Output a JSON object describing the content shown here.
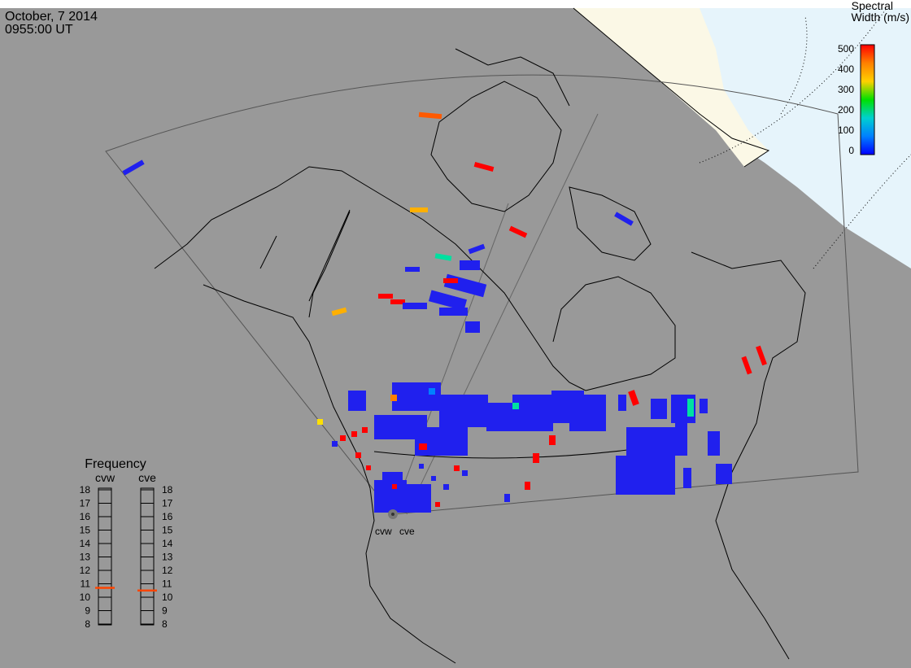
{
  "header": {
    "date": "October, 7 2014",
    "time": "0955:00 UT"
  },
  "colorbar": {
    "title_line1": "Spectral",
    "title_line2": "Width (m/s)",
    "ticks": [
      "500",
      "400",
      "300",
      "200",
      "100",
      "0"
    ],
    "stops": [
      "#ff0000",
      "#ff8000",
      "#ffd000",
      "#00e000",
      "#00d0d0",
      "#0080ff",
      "#0000ff"
    ]
  },
  "frequency": {
    "title": "Frequency",
    "panels": [
      {
        "name": "cvw",
        "value": 10.7
      },
      {
        "name": "cve",
        "value": 10.5
      }
    ],
    "ticks": [
      "18",
      "17",
      "16",
      "15",
      "14",
      "13",
      "12",
      "11",
      "10",
      "9",
      "8"
    ]
  },
  "radars": {
    "labels": [
      "cvw",
      "cve"
    ]
  },
  "colors": {
    "background": "#ffffff",
    "land": "#999999",
    "daylight_land": "#fbf8e6",
    "daylight_ocean": "#e6f4fb",
    "echo_low": "#2020ee",
    "echo_high": "#ff0000"
  }
}
